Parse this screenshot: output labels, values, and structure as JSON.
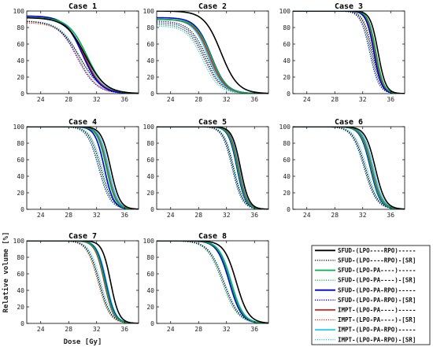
{
  "figure": {
    "xlabel": "Dose [Gy]",
    "ylabel": "Relative volume [%]"
  },
  "legend": {
    "entries": [
      {
        "label": "SFUD-(LPO----RPO)-----",
        "color": "#000000",
        "dash": "solid"
      },
      {
        "label": "SFUD-(LPO----RPO)-[SR]",
        "color": "#000000",
        "dash": "dotted"
      },
      {
        "label": "SFUD-(LPO-PA----)-----",
        "color": "#00b050",
        "dash": "solid"
      },
      {
        "label": "SFUD-(LPO-PA----)-[SR]",
        "color": "#00b050",
        "dash": "dotted"
      },
      {
        "label": "SFUD-(LPO-PA-RPO)-----",
        "color": "#0000cc",
        "dash": "solid"
      },
      {
        "label": "SFUD-(LPO-PA-RPO)-[SR]",
        "color": "#0000cc",
        "dash": "dotted"
      },
      {
        "label": "IMPT-(LPO-PA----)-----",
        "color": "#e0201a",
        "dash": "solid"
      },
      {
        "label": "IMPT-(LPO-PA----)-[SR]",
        "color": "#e0201a",
        "dash": "dotted"
      },
      {
        "label": "IMPT-(LPO-PA-RPO)-----",
        "color": "#22ccf0",
        "dash": "solid"
      },
      {
        "label": "IMPT-(LPO-PA-RPO)-[SR]",
        "color": "#22ccf0",
        "dash": "dotted"
      }
    ]
  },
  "chart_data": [
    {
      "type": "line",
      "title": "Case 1",
      "xlim": [
        22,
        38
      ],
      "ylim": [
        0,
        100
      ],
      "xticks": [
        "24",
        "28",
        "32",
        "36"
      ],
      "yticks": [
        "0",
        "20",
        "40",
        "60",
        "80",
        "100"
      ],
      "series": [
        {
          "d50": 30.4,
          "s": 2.6,
          "top": 92
        },
        {
          "d50": 29.6,
          "s": 2.8,
          "top": 88
        },
        {
          "d50": 30.6,
          "s": 2.4,
          "top": 92
        },
        {
          "d50": 29.6,
          "s": 2.8,
          "top": 88
        },
        {
          "d50": 30.0,
          "s": 2.3,
          "top": 94
        },
        {
          "d50": 29.2,
          "s": 2.5,
          "top": 88
        },
        {
          "d50": 30.2,
          "s": 2.3,
          "top": 92
        },
        {
          "d50": 29.4,
          "s": 2.5,
          "top": 86
        },
        {
          "d50": 30.2,
          "s": 2.4,
          "top": 94
        },
        {
          "d50": 29.6,
          "s": 2.6,
          "top": 88
        }
      ]
    },
    {
      "type": "line",
      "title": "Case 2",
      "xlim": [
        22,
        38
      ],
      "ylim": [
        0,
        100
      ],
      "xticks": [
        "24",
        "28",
        "32",
        "36"
      ],
      "yticks": [
        "0",
        "20",
        "40",
        "60",
        "80",
        "100"
      ],
      "series": [
        {
          "d50": 31.2,
          "s": 2.2,
          "top": 100
        },
        {
          "d50": 29.2,
          "s": 2.3,
          "top": 88
        },
        {
          "d50": 29.8,
          "s": 2.0,
          "top": 90
        },
        {
          "d50": 28.9,
          "s": 2.2,
          "top": 84
        },
        {
          "d50": 29.8,
          "s": 2.0,
          "top": 92
        },
        {
          "d50": 29.0,
          "s": 2.2,
          "top": 86
        },
        {
          "d50": 29.6,
          "s": 2.0,
          "top": 90
        },
        {
          "d50": 28.8,
          "s": 2.2,
          "top": 84
        },
        {
          "d50": 29.4,
          "s": 2.0,
          "top": 90
        },
        {
          "d50": 28.6,
          "s": 2.1,
          "top": 82
        }
      ]
    },
    {
      "type": "line",
      "title": "Case 3",
      "xlim": [
        22,
        38
      ],
      "ylim": [
        0,
        100
      ],
      "xticks": [
        "24",
        "28",
        "32",
        "36"
      ],
      "yticks": [
        "0",
        "20",
        "40",
        "60",
        "80",
        "100"
      ],
      "series": [
        {
          "d50": 34.2,
          "s": 1.0,
          "top": 100
        },
        {
          "d50": 33.4,
          "s": 1.2,
          "top": 100
        },
        {
          "d50": 33.9,
          "s": 1.0,
          "top": 100
        },
        {
          "d50": 33.3,
          "s": 1.2,
          "top": 100
        },
        {
          "d50": 33.6,
          "s": 1.0,
          "top": 100
        },
        {
          "d50": 33.0,
          "s": 1.2,
          "top": 100
        },
        {
          "d50": 33.8,
          "s": 1.0,
          "top": 100
        },
        {
          "d50": 33.2,
          "s": 1.2,
          "top": 100
        },
        {
          "d50": 33.7,
          "s": 1.0,
          "top": 100
        },
        {
          "d50": 33.1,
          "s": 1.2,
          "top": 100
        }
      ]
    },
    {
      "type": "line",
      "title": "Case 4",
      "xlim": [
        22,
        38
      ],
      "ylim": [
        0,
        100
      ],
      "xticks": [
        "24",
        "28",
        "32",
        "36"
      ],
      "yticks": [
        "0",
        "20",
        "40",
        "60",
        "80",
        "100"
      ],
      "series": [
        {
          "d50": 34.0,
          "s": 1.2,
          "top": 100
        },
        {
          "d50": 32.6,
          "s": 1.5,
          "top": 100
        },
        {
          "d50": 33.4,
          "s": 1.2,
          "top": 100
        },
        {
          "d50": 32.4,
          "s": 1.5,
          "top": 100
        },
        {
          "d50": 33.1,
          "s": 1.2,
          "top": 100
        },
        {
          "d50": 32.3,
          "s": 1.5,
          "top": 100
        },
        {
          "d50": 33.5,
          "s": 1.2,
          "top": 100
        },
        {
          "d50": 32.6,
          "s": 1.5,
          "top": 100
        },
        {
          "d50": 33.7,
          "s": 1.2,
          "top": 100
        },
        {
          "d50": 32.8,
          "s": 1.5,
          "top": 100
        }
      ]
    },
    {
      "type": "line",
      "title": "Case 5",
      "xlim": [
        22,
        38
      ],
      "ylim": [
        0,
        100
      ],
      "xticks": [
        "24",
        "28",
        "32",
        "36"
      ],
      "yticks": [
        "0",
        "20",
        "40",
        "60",
        "80",
        "100"
      ],
      "series": [
        {
          "d50": 34.0,
          "s": 1.1,
          "top": 100
        },
        {
          "d50": 33.0,
          "s": 1.3,
          "top": 100
        },
        {
          "d50": 33.6,
          "s": 1.1,
          "top": 100
        },
        {
          "d50": 32.9,
          "s": 1.3,
          "top": 100
        },
        {
          "d50": 33.5,
          "s": 1.1,
          "top": 100
        },
        {
          "d50": 32.8,
          "s": 1.3,
          "top": 100
        },
        {
          "d50": 33.7,
          "s": 1.1,
          "top": 100
        },
        {
          "d50": 33.0,
          "s": 1.3,
          "top": 100
        },
        {
          "d50": 33.9,
          "s": 1.1,
          "top": 100
        },
        {
          "d50": 33.1,
          "s": 1.3,
          "top": 100
        }
      ]
    },
    {
      "type": "line",
      "title": "Case 6",
      "xlim": [
        22,
        38
      ],
      "ylim": [
        0,
        100
      ],
      "xticks": [
        "24",
        "28",
        "32",
        "36"
      ],
      "yticks": [
        "0",
        "20",
        "40",
        "60",
        "80",
        "100"
      ],
      "series": [
        {
          "d50": 33.8,
          "s": 1.3,
          "top": 100
        },
        {
          "d50": 32.4,
          "s": 1.6,
          "top": 100
        },
        {
          "d50": 33.2,
          "s": 1.3,
          "top": 100
        },
        {
          "d50": 32.3,
          "s": 1.6,
          "top": 100
        },
        {
          "d50": 33.1,
          "s": 1.3,
          "top": 100
        },
        {
          "d50": 32.2,
          "s": 1.6,
          "top": 100
        },
        {
          "d50": 33.3,
          "s": 1.3,
          "top": 100
        },
        {
          "d50": 32.4,
          "s": 1.6,
          "top": 100
        },
        {
          "d50": 33.5,
          "s": 1.3,
          "top": 100
        },
        {
          "d50": 32.6,
          "s": 1.6,
          "top": 100
        }
      ]
    },
    {
      "type": "line",
      "title": "Case 7",
      "xlim": [
        22,
        38
      ],
      "ylim": [
        0,
        100
      ],
      "xticks": [
        "24",
        "28",
        "32",
        "36"
      ],
      "yticks": [
        "0",
        "20",
        "40",
        "60",
        "80",
        "100"
      ],
      "series": [
        {
          "d50": 34.0,
          "s": 1.1,
          "top": 100
        },
        {
          "d50": 32.4,
          "s": 1.5,
          "top": 100
        },
        {
          "d50": 33.2,
          "s": 1.2,
          "top": 100
        },
        {
          "d50": 32.3,
          "s": 1.5,
          "top": 100
        },
        {
          "d50": 33.3,
          "s": 1.2,
          "top": 100
        },
        {
          "d50": 32.4,
          "s": 1.5,
          "top": 100
        },
        {
          "d50": 33.1,
          "s": 1.2,
          "top": 100
        },
        {
          "d50": 32.2,
          "s": 1.5,
          "top": 100
        },
        {
          "d50": 33.4,
          "s": 1.2,
          "top": 100
        },
        {
          "d50": 32.6,
          "s": 1.5,
          "top": 100
        }
      ]
    },
    {
      "type": "line",
      "title": "Case 8",
      "xlim": [
        22,
        38
      ],
      "ylim": [
        0,
        100
      ],
      "xticks": [
        "24",
        "28",
        "32",
        "36"
      ],
      "yticks": [
        "0",
        "20",
        "40",
        "60",
        "80",
        "100"
      ],
      "series": [
        {
          "d50": 33.4,
          "s": 1.6,
          "top": 100
        },
        {
          "d50": 31.6,
          "s": 2.0,
          "top": 100
        },
        {
          "d50": 32.6,
          "s": 1.6,
          "top": 100
        },
        {
          "d50": 31.4,
          "s": 2.0,
          "top": 100
        },
        {
          "d50": 32.4,
          "s": 1.6,
          "top": 100
        },
        {
          "d50": 31.4,
          "s": 2.0,
          "top": 100
        },
        {
          "d50": 32.6,
          "s": 1.6,
          "top": 100
        },
        {
          "d50": 31.6,
          "s": 2.0,
          "top": 100
        },
        {
          "d50": 32.7,
          "s": 1.6,
          "top": 100
        },
        {
          "d50": 31.7,
          "s": 2.0,
          "top": 100
        }
      ]
    }
  ]
}
